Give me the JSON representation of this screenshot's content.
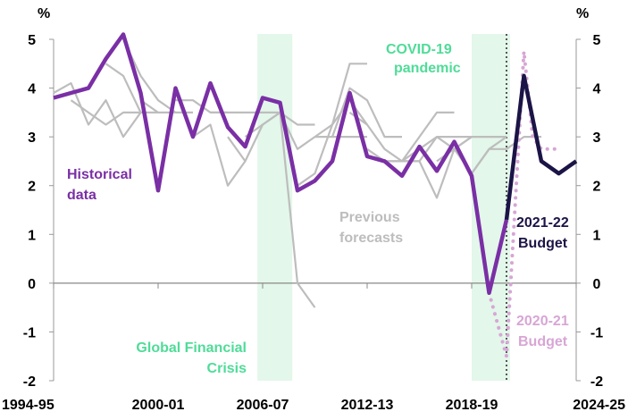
{
  "chart_data": {
    "type": "line",
    "title": "",
    "unit_left": "%",
    "unit_right": "%",
    "xlabel": "",
    "ylabel": "",
    "ylim": [
      -2,
      5
    ],
    "y_ticks": [
      5,
      4,
      3,
      2,
      1,
      0,
      -1,
      -2
    ],
    "x_ticks": [
      {
        "year": 1995,
        "label": "1994-95"
      },
      {
        "year": 2001,
        "label": "2000-01"
      },
      {
        "year": 2007,
        "label": "2006-07"
      },
      {
        "year": 2013,
        "label": "2012-13"
      },
      {
        "year": 2019,
        "label": "2018-19"
      },
      {
        "year": 2025,
        "label": "2024-25"
      }
    ],
    "xlim": [
      1995,
      2025
    ],
    "shaded_periods": [
      {
        "label": "Global Financial Crisis",
        "from": 2006.7,
        "to": 2008.7,
        "color": "#e3f7ea"
      },
      {
        "label": "COVID-19 pandemic",
        "from": 2019.0,
        "to": 2021.2,
        "color": "#e3f7ea"
      }
    ],
    "budget_marker_year": 2021,
    "annotations": {
      "historical": [
        "Historical",
        "data"
      ],
      "previous": [
        "Previous",
        "forecasts"
      ],
      "budget_2021": [
        "2021-22",
        "Budget"
      ],
      "budget_2020": [
        "2020-21",
        "Budget"
      ],
      "gfc": [
        "Global Financial",
        "Crisis"
      ],
      "covid": [
        "COVID-19",
        "pandemic"
      ]
    },
    "colors": {
      "historical": "#7a2fa5",
      "previous": "#bdbdbd",
      "budget_2021": "#1b1446",
      "budget_2020": "#d7a6d5",
      "shade_label": "#4fdc98"
    },
    "series": [
      {
        "id": "historical",
        "x": [
          1995,
          1996,
          1997,
          1998,
          1999,
          2000,
          2001,
          2002,
          2003,
          2004,
          2005,
          2006,
          2007,
          2008,
          2009,
          2010,
          2011,
          2012,
          2013,
          2014,
          2015,
          2016,
          2017,
          2018,
          2019,
          2020,
          2021
        ],
        "values": [
          3.8,
          3.9,
          4.0,
          4.6,
          5.1,
          3.9,
          1.9,
          4.0,
          3.0,
          4.1,
          3.2,
          2.8,
          3.8,
          3.7,
          1.9,
          2.1,
          2.5,
          3.9,
          2.6,
          2.5,
          2.2,
          2.8,
          2.3,
          2.9,
          2.2,
          -0.2,
          1.3
        ]
      },
      {
        "id": "budget_2021",
        "x": [
          2021,
          2022,
          2023,
          2024,
          2025
        ],
        "values": [
          1.3,
          4.25,
          2.5,
          2.25,
          2.5
        ]
      },
      {
        "id": "budget_2020",
        "x": [
          2020,
          2021,
          2021.4,
          2022,
          2022.5,
          2023,
          2024
        ],
        "values": [
          -0.2,
          -1.5,
          1.0,
          4.75,
          3.0,
          2.75,
          2.75
        ]
      },
      {
        "id": "previous",
        "paths": [
          {
            "x": [
              1995,
              1996,
              1997,
              1998,
              1999,
              2000
            ],
            "values": [
              3.9,
              4.1,
              3.25,
              3.75,
              3.0,
              3.5
            ]
          },
          {
            "x": [
              1996,
              1997,
              1998,
              1999,
              2000
            ],
            "values": [
              3.75,
              3.5,
              3.25,
              3.5,
              3.5
            ]
          },
          {
            "x": [
              1998,
              1999,
              2000,
              2001
            ],
            "values": [
              4.5,
              4.25,
              3.5,
              3.5
            ]
          },
          {
            "x": [
              1999,
              2000,
              2001,
              2002
            ],
            "values": [
              5.0,
              4.25,
              3.75,
              3.5
            ]
          },
          {
            "x": [
              2000,
              2001,
              2002,
              2003
            ],
            "values": [
              3.75,
              3.5,
              3.5,
              3.5
            ]
          },
          {
            "x": [
              2002,
              2003,
              2004,
              2005
            ],
            "values": [
              3.75,
              3.75,
              3.5,
              3.5
            ]
          },
          {
            "x": [
              2003,
              2004,
              2005,
              2006
            ],
            "values": [
              3.0,
              3.25,
              2.0,
              2.5
            ]
          },
          {
            "x": [
              2004,
              2005,
              2006,
              2007,
              2008
            ],
            "values": [
              3.5,
              3.5,
              3.5,
              3.5,
              3.5
            ]
          },
          {
            "x": [
              2005,
              2006,
              2007,
              2008
            ],
            "values": [
              3.0,
              2.5,
              3.25,
              3.5
            ]
          },
          {
            "x": [
              2006,
              2007,
              2008,
              2009,
              2010
            ],
            "values": [
              3.0,
              3.25,
              3.5,
              3.25,
              3.25
            ]
          },
          {
            "x": [
              2008,
              2009,
              2010,
              2011,
              2012,
              2013
            ],
            "values": [
              3.5,
              2.75,
              3.0,
              3.0,
              3.0,
              3.0
            ]
          },
          {
            "x": [
              2008,
              2009,
              2010
            ],
            "values": [
              3.5,
              0.0,
              -0.5
            ]
          },
          {
            "x": [
              2009,
              2010,
              2011,
              2012,
              2013
            ],
            "values": [
              2.0,
              2.25,
              3.25,
              3.75,
              3.25
            ]
          },
          {
            "x": [
              2010,
              2011,
              2012,
              2013
            ],
            "values": [
              3.0,
              3.25,
              4.5,
              4.5
            ]
          },
          {
            "x": [
              2011,
              2012,
              2013,
              2014,
              2015
            ],
            "values": [
              3.0,
              4.0,
              3.75,
              3.0,
              3.0
            ]
          },
          {
            "x": [
              2012,
              2013,
              2014,
              2015,
              2016
            ],
            "values": [
              3.5,
              3.25,
              2.75,
              2.5,
              2.5
            ]
          },
          {
            "x": [
              2013,
              2014,
              2015,
              2016,
              2017,
              2018
            ],
            "values": [
              2.75,
              2.5,
              2.5,
              3.0,
              3.5,
              3.5
            ]
          },
          {
            "x": [
              2014,
              2015,
              2016,
              2017,
              2018,
              2019
            ],
            "values": [
              2.5,
              2.5,
              2.75,
              3.0,
              3.0,
              3.0
            ]
          },
          {
            "x": [
              2015,
              2016,
              2017,
              2018,
              2019
            ],
            "values": [
              2.5,
              2.5,
              1.75,
              2.75,
              3.0
            ]
          },
          {
            "x": [
              2016,
              2017,
              2018,
              2019,
              2020,
              2021
            ],
            "values": [
              2.5,
              3.0,
              2.75,
              3.0,
              3.0,
              3.0
            ]
          },
          {
            "x": [
              2017,
              2018,
              2019,
              2020,
              2021
            ],
            "values": [
              2.5,
              2.75,
              2.25,
              2.75,
              3.0
            ]
          },
          {
            "x": [
              2019,
              2020,
              2021,
              2022,
              2023
            ],
            "values": [
              2.25,
              2.75,
              2.75,
              3.0,
              3.0
            ]
          }
        ]
      }
    ]
  }
}
